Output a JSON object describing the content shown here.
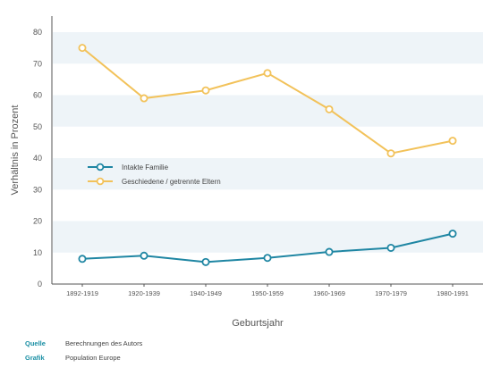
{
  "chart_data": {
    "type": "line",
    "categories": [
      "1892-1919",
      "1920-1939",
      "1940-1949",
      "1950-1959",
      "1960-1969",
      "1970-1979",
      "1980-1991"
    ],
    "series": [
      {
        "name": "Intakte Familie",
        "color": "#1f86a3",
        "values": [
          8,
          9,
          7,
          8.3,
          10.2,
          11.5,
          16
        ]
      },
      {
        "name": "Geschiedene / getrennte Eltern",
        "color": "#f2c25a",
        "values": [
          75,
          59,
          61.5,
          67,
          55.5,
          41.5,
          45.5
        ]
      }
    ],
    "ylabel": "Verhältnis in Prozent",
    "xlabel": "Geburtsjahr",
    "ylim": [
      0,
      80
    ],
    "yticks": [
      0,
      10,
      20,
      30,
      40,
      50,
      60,
      70,
      80
    ],
    "grid": "alternating horizontal bands",
    "legend_position": "center-left"
  },
  "footer": {
    "source_label": "Quelle",
    "source_value": "Berechnungen des Autors",
    "graphic_label": "Grafik",
    "graphic_value": "Population Europe"
  }
}
